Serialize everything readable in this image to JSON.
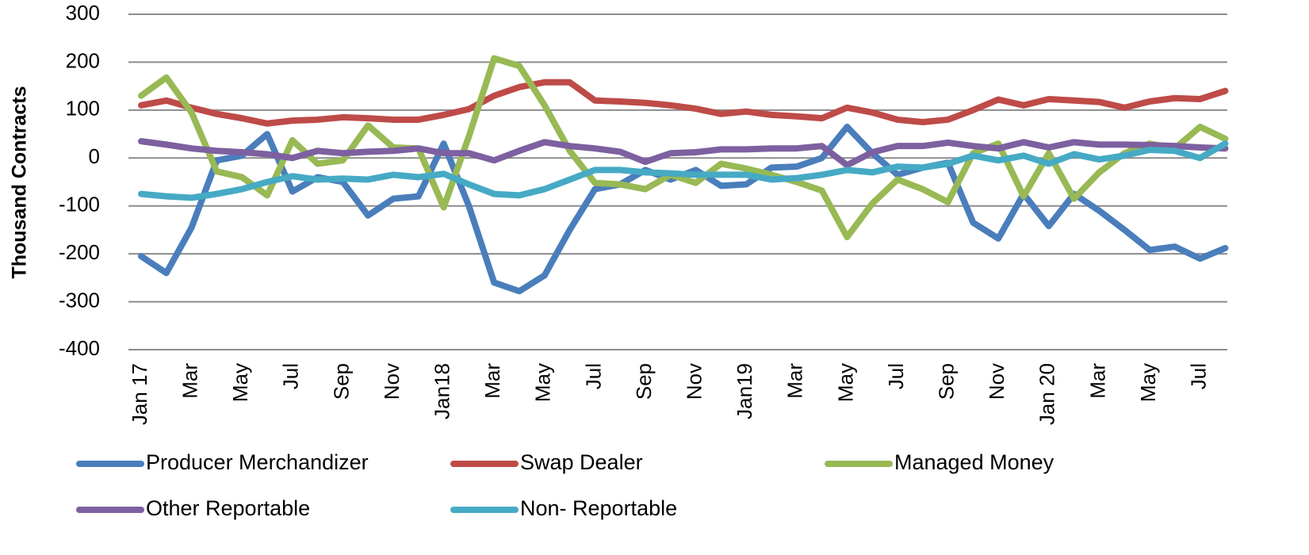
{
  "chart_data": {
    "type": "line",
    "y_label": "Thousand Contracts",
    "categories": [
      "Jan 17",
      null,
      "Mar",
      null,
      "May",
      null,
      "Jul",
      null,
      "Sep",
      null,
      "Nov",
      null,
      "Jan18",
      null,
      "Mar",
      null,
      "May",
      null,
      "Jul",
      null,
      "Sep",
      null,
      "Nov",
      null,
      "Jan19",
      null,
      "Mar",
      null,
      "May",
      null,
      "Jul",
      null,
      "Sep",
      null,
      "Nov",
      null,
      "Jan 20",
      null,
      "Mar",
      null,
      "May",
      null,
      "Jul",
      null
    ],
    "series": [
      {
        "name": "Producer Merchandizer",
        "color": "#4a7ebb",
        "values": [
          -205,
          -240,
          -145,
          -5,
          5,
          50,
          -70,
          -40,
          -50,
          -120,
          -85,
          -80,
          30,
          -100,
          -260,
          -278,
          -245,
          -150,
          -65,
          -55,
          -25,
          -45,
          -25,
          -58,
          -55,
          -20,
          -18,
          0,
          65,
          10,
          -35,
          -20,
          -10,
          -135,
          -168,
          -75,
          -142,
          -75,
          -110,
          -150,
          -192,
          -185,
          -210,
          -188
        ]
      },
      {
        "name": "Swap Dealer",
        "color": "#be4b48",
        "values": [
          110,
          120,
          105,
          92,
          83,
          72,
          78,
          80,
          85,
          83,
          80,
          80,
          90,
          102,
          130,
          148,
          158,
          158,
          120,
          118,
          115,
          110,
          103,
          92,
          97,
          90,
          87,
          83,
          105,
          95,
          80,
          75,
          80,
          100,
          122,
          110,
          123,
          120,
          117,
          105,
          118,
          125,
          123,
          140
        ]
      },
      {
        "name": "Managed Money",
        "color": "#98b954",
        "values": [
          130,
          168,
          95,
          -28,
          -40,
          -78,
          37,
          -12,
          -5,
          68,
          22,
          20,
          -103,
          45,
          208,
          192,
          110,
          15,
          -52,
          -55,
          -65,
          -35,
          -52,
          -12,
          -22,
          -35,
          -50,
          -68,
          -165,
          -95,
          -45,
          -65,
          -92,
          10,
          30,
          -80,
          10,
          -85,
          -30,
          10,
          30,
          20,
          65,
          40
        ]
      },
      {
        "name": "Other Reportable",
        "color": "#7d60a0",
        "values": [
          35,
          28,
          20,
          15,
          12,
          8,
          0,
          15,
          10,
          13,
          15,
          20,
          10,
          10,
          -5,
          15,
          33,
          25,
          20,
          13,
          -8,
          10,
          12,
          18,
          18,
          20,
          20,
          25,
          -15,
          12,
          25,
          25,
          32,
          25,
          20,
          33,
          22,
          33,
          28,
          28,
          27,
          25,
          22,
          20
        ]
      },
      {
        "name": "Non- Reportable",
        "color": "#46aac5",
        "values": [
          -75,
          -80,
          -83,
          -75,
          -65,
          -50,
          -38,
          -45,
          -43,
          -45,
          -35,
          -40,
          -33,
          -55,
          -75,
          -78,
          -65,
          -45,
          -25,
          -25,
          -30,
          -32,
          -35,
          -35,
          -35,
          -45,
          -42,
          -35,
          -25,
          -30,
          -18,
          -20,
          -12,
          5,
          -5,
          5,
          -12,
          8,
          -3,
          5,
          17,
          15,
          0,
          30
        ]
      }
    ],
    "ylim": [
      -400,
      300
    ],
    "yticks": [
      -400,
      -300,
      -200,
      -100,
      0,
      100,
      200,
      300
    ],
    "grid": true
  }
}
